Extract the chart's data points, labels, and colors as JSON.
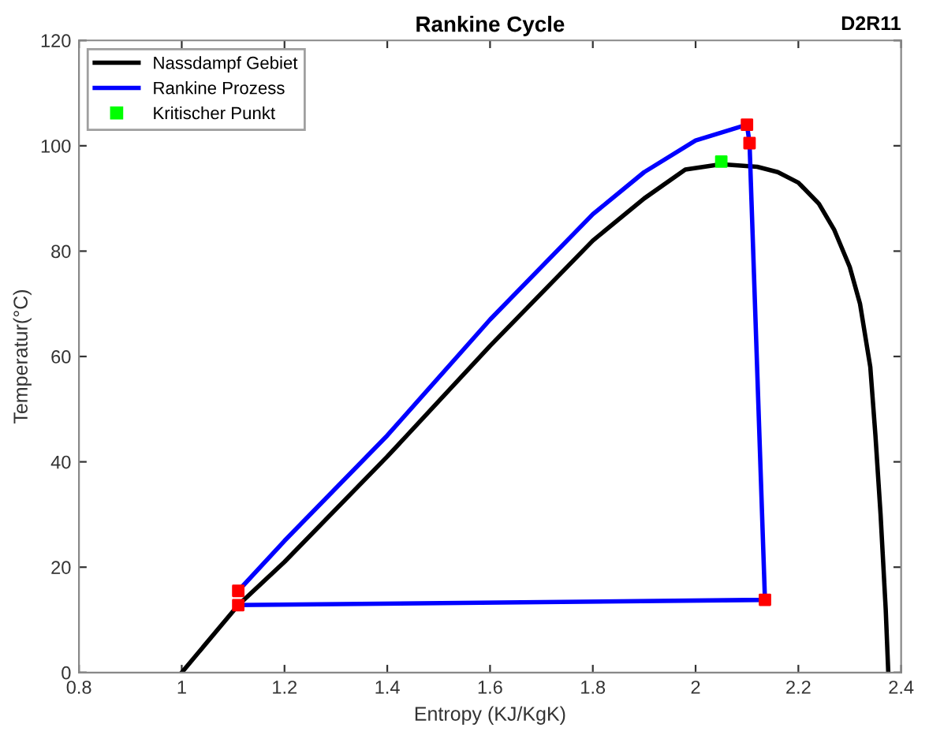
{
  "chart_data": {
    "type": "line",
    "title": "Rankine Cycle",
    "xlabel": "Entropy (KJ/KgK)",
    "ylabel": "Temperatur(°C)",
    "annotations": [
      "D2R11"
    ],
    "xlim": [
      0.8,
      2.4
    ],
    "ylim": [
      0,
      120
    ],
    "xticks": [
      {
        "value": 0.8,
        "label": "0.8"
      },
      1,
      {
        "value": 1.2,
        "label": "1.2"
      },
      {
        "value": 1.4,
        "label": "1.4"
      },
      {
        "value": 1.6,
        "label": "1.6"
      },
      {
        "value": 1.8,
        "label": "1.8"
      },
      2,
      {
        "value": 2.2,
        "label": "2.2"
      },
      {
        "value": 2.4,
        "label": "2.4"
      }
    ],
    "yticks": [
      0,
      20,
      40,
      60,
      80,
      100,
      120
    ],
    "grid": false,
    "legend": "top left",
    "series": [
      {
        "name": "Nassdampf Gebiet",
        "color": "#000000",
        "marker": "none",
        "x": [
          1,
          1.11,
          1.2,
          1.4,
          1.6,
          1.8,
          1.9,
          1.98,
          2.05,
          2.12,
          2.16,
          2.2,
          2.24,
          2.27,
          2.3,
          2.32,
          2.34,
          2.35,
          2.36,
          2.37,
          2.375
        ],
        "values": [
          0,
          12.8,
          21,
          41,
          62,
          82,
          90,
          95.5,
          96.5,
          96,
          95,
          93,
          89,
          84,
          77,
          70,
          58,
          45,
          30,
          12,
          0
        ]
      },
      {
        "name": "Rankine Prozess",
        "color": "#0000ff",
        "marker": "none",
        "x": [
          1.11,
          1.2,
          1.4,
          1.6,
          1.8,
          1.9,
          2.0,
          2.1,
          2.105,
          2.135,
          1.11
        ],
        "values": [
          15.5,
          25,
          45,
          67,
          87,
          95,
          101,
          104,
          100.5,
          13.8,
          12.8
        ]
      },
      {
        "type": "scatter",
        "color": "#ff0000",
        "marker": "square",
        "x": [
          2.1,
          2.105,
          2.135,
          1.11,
          1.11
        ],
        "values": [
          104,
          100.5,
          13.8,
          12.8,
          15.5
        ]
      },
      {
        "name": "Kritischer Punkt",
        "type": "scatter",
        "color": "#00ff00",
        "marker": "square",
        "x": [
          2.05
        ],
        "values": [
          97
        ]
      }
    ]
  }
}
